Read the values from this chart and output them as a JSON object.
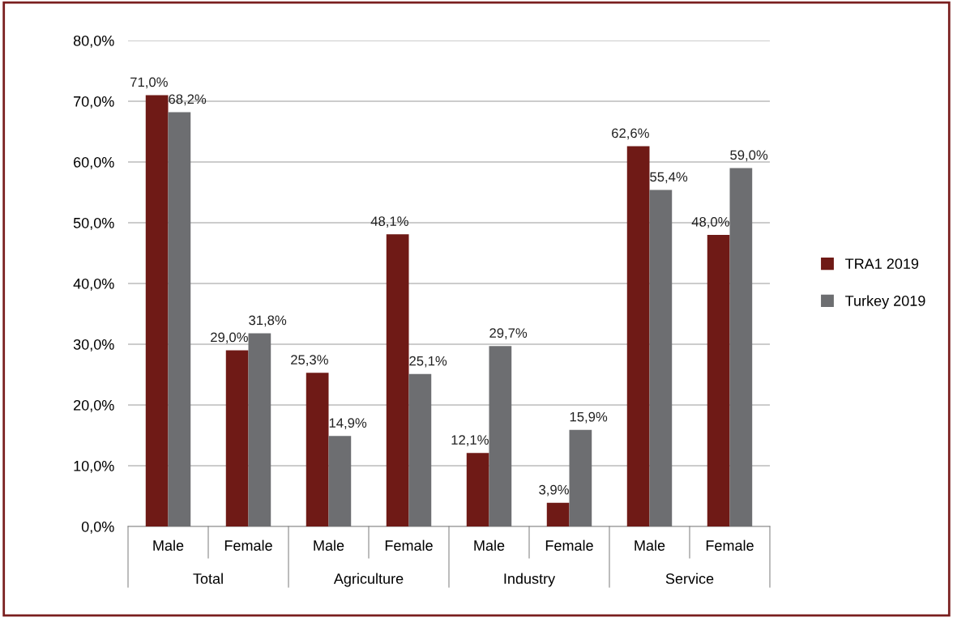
{
  "chart_data": {
    "type": "bar",
    "categories": [
      "Male",
      "Female",
      "Male",
      "Female",
      "Male",
      "Female",
      "Male",
      "Female"
    ],
    "series": [
      {
        "name": "TRA1 2019",
        "color": "#6f1a16",
        "values": [
          71.0,
          29.0,
          25.3,
          48.1,
          12.1,
          3.9,
          62.6,
          48.0
        ],
        "value_labels": [
          "71,0%",
          "29,0%",
          "25,3%",
          "48,1%",
          "12,1%",
          "3,9%",
          "62,6%",
          "48,0%"
        ]
      },
      {
        "name": "Turkey 2019",
        "color": "#6d6e71",
        "values": [
          68.2,
          31.8,
          14.9,
          25.1,
          29.7,
          15.9,
          55.4,
          59.0
        ],
        "value_labels": [
          "68,2%",
          "31,8%",
          "14,9%",
          "25,1%",
          "29,7%",
          "15,9%",
          "55,4%",
          "59,0%"
        ]
      }
    ],
    "annotations": [
      "Total",
      "Agriculture",
      "Industry",
      "Service"
    ],
    "ylim": [
      0,
      80
    ],
    "yticks": [
      {
        "value": 0,
        "label": "0,0%"
      },
      {
        "value": 10,
        "label": "10,0%"
      },
      {
        "value": 20,
        "label": "20,0%"
      },
      {
        "value": 30,
        "label": "30,0%"
      },
      {
        "value": 40,
        "label": "40,0%"
      },
      {
        "value": 50,
        "label": "50,0%"
      },
      {
        "value": 60,
        "label": "60,0%"
      },
      {
        "value": 70,
        "label": "70,0%"
      },
      {
        "value": 80,
        "label": "80,0%"
      }
    ],
    "grid": "y",
    "legend": "right"
  }
}
